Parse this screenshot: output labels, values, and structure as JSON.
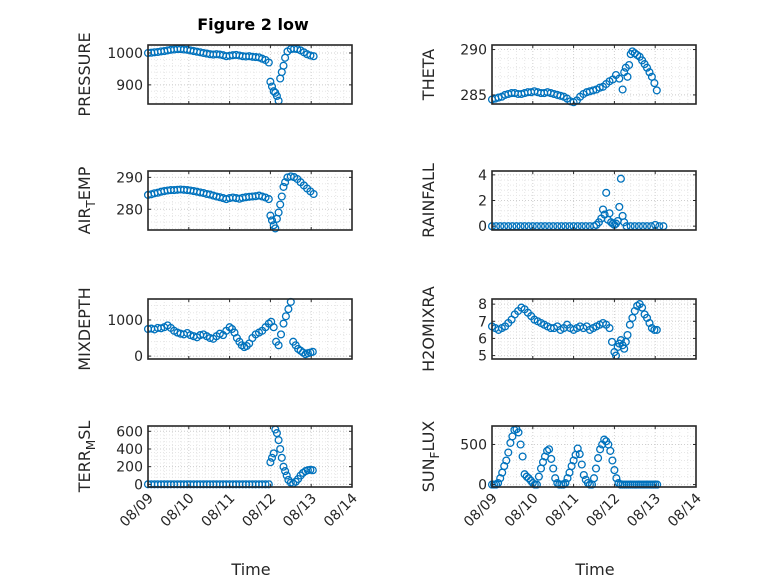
{
  "figure": {
    "title": "Figure 2 low",
    "xlabel": "Time",
    "marker_color": "#0072BD",
    "grid": true,
    "grid_style": "dotted",
    "x_ticks": [
      "08/09",
      "08/10",
      "08/11",
      "08/12",
      "08/13",
      "08/14"
    ]
  },
  "chart_data": [
    {
      "id": "pressure",
      "type": "scatter",
      "ylabel": "PRESSURE",
      "xlim": [
        0,
        5
      ],
      "ylim": [
        840,
        1025
      ],
      "yticks": [
        900,
        1000
      ],
      "ytick_labels": [
        "900",
        "1000"
      ],
      "x": [
        0.0,
        0.08,
        0.16,
        0.24,
        0.32,
        0.4,
        0.48,
        0.56,
        0.64,
        0.72,
        0.8,
        0.88,
        0.96,
        1.04,
        1.12,
        1.2,
        1.28,
        1.36,
        1.44,
        1.52,
        1.6,
        1.68,
        1.76,
        1.84,
        1.92,
        2.0,
        2.08,
        2.16,
        2.24,
        2.32,
        2.4,
        2.48,
        2.56,
        2.64,
        2.72,
        2.8,
        2.88,
        2.96,
        3.0,
        3.04,
        3.08,
        3.12,
        3.16,
        3.2,
        3.24,
        3.28,
        3.32,
        3.36,
        3.42,
        3.5,
        3.58,
        3.66,
        3.74,
        3.82,
        3.9,
        3.98,
        4.06
      ],
      "y": [
        1000,
        1001,
        1002,
        1003,
        1005,
        1006,
        1008,
        1010,
        1011,
        1012,
        1012,
        1011,
        1010,
        1008,
        1006,
        1004,
        1002,
        1000,
        998,
        996,
        995,
        996,
        995,
        993,
        990,
        991,
        993,
        994,
        992,
        990,
        989,
        990,
        988,
        987,
        986,
        982,
        978,
        970,
        910,
        895,
        880,
        875,
        865,
        850,
        920,
        940,
        960,
        985,
        1005,
        1012,
        1013,
        1012,
        1008,
        1002,
        996,
        992,
        990
      ]
    },
    {
      "id": "theta",
      "type": "scatter",
      "ylabel": "THETA",
      "xlim": [
        0,
        5
      ],
      "ylim": [
        284,
        290.5
      ],
      "yticks": [
        285,
        290
      ],
      "ytick_labels": [
        "285",
        "290"
      ],
      "x": [
        0.0,
        0.08,
        0.16,
        0.24,
        0.32,
        0.4,
        0.48,
        0.56,
        0.64,
        0.72,
        0.8,
        0.88,
        0.96,
        1.04,
        1.12,
        1.2,
        1.28,
        1.36,
        1.44,
        1.52,
        1.6,
        1.68,
        1.76,
        1.84,
        1.92,
        2.0,
        2.08,
        2.16,
        2.24,
        2.32,
        2.4,
        2.48,
        2.56,
        2.64,
        2.72,
        2.8,
        2.88,
        2.96,
        3.04,
        3.12,
        3.2,
        3.24,
        3.28,
        3.32,
        3.36,
        3.4,
        3.44,
        3.5,
        3.56,
        3.62,
        3.68,
        3.74,
        3.8,
        3.86,
        3.92,
        3.98,
        4.04
      ],
      "y": [
        284.5,
        284.6,
        284.7,
        284.8,
        285.0,
        285.1,
        285.2,
        285.2,
        285.1,
        285.1,
        285.2,
        285.3,
        285.3,
        285.4,
        285.3,
        285.2,
        285.2,
        285.3,
        285.2,
        285.1,
        285.0,
        284.9,
        284.8,
        284.6,
        284.3,
        284.2,
        284.4,
        284.8,
        285.1,
        285.3,
        285.4,
        285.5,
        285.6,
        285.8,
        285.9,
        286.2,
        286.5,
        286.7,
        287.2,
        286.8,
        285.6,
        287.5,
        288.0,
        287.0,
        288.3,
        289.5,
        289.8,
        289.6,
        289.4,
        289.2,
        288.8,
        288.4,
        288.0,
        287.5,
        287.0,
        286.3,
        285.5
      ]
    },
    {
      "id": "air_temp",
      "type": "scatter",
      "ylabel": "AIR_TEMP",
      "xlim": [
        0,
        5
      ],
      "ylim": [
        273.5,
        292
      ],
      "yticks": [
        280,
        290
      ],
      "ytick_labels": [
        "280",
        "290"
      ],
      "x": [
        0.0,
        0.08,
        0.16,
        0.24,
        0.32,
        0.4,
        0.48,
        0.56,
        0.64,
        0.72,
        0.8,
        0.88,
        0.96,
        1.04,
        1.12,
        1.2,
        1.28,
        1.36,
        1.44,
        1.52,
        1.6,
        1.68,
        1.76,
        1.84,
        1.92,
        2.0,
        2.08,
        2.16,
        2.24,
        2.32,
        2.4,
        2.48,
        2.56,
        2.64,
        2.72,
        2.8,
        2.88,
        2.96,
        3.0,
        3.04,
        3.08,
        3.12,
        3.16,
        3.2,
        3.24,
        3.28,
        3.32,
        3.36,
        3.42,
        3.5,
        3.58,
        3.66,
        3.74,
        3.82,
        3.9,
        3.98,
        4.06
      ],
      "y": [
        284.5,
        284.7,
        285.0,
        285.2,
        285.5,
        285.7,
        285.9,
        286.0,
        286.0,
        286.1,
        286.2,
        286.1,
        286.0,
        285.9,
        285.7,
        285.5,
        285.3,
        285.1,
        284.8,
        284.6,
        284.3,
        284.0,
        283.8,
        283.5,
        283.2,
        283.5,
        283.7,
        283.5,
        283.3,
        283.6,
        283.8,
        283.9,
        284.0,
        284.1,
        284.3,
        284.0,
        283.7,
        283.2,
        278.0,
        276.5,
        275.0,
        274.0,
        277.0,
        279.0,
        281.5,
        284.0,
        287.0,
        288.5,
        290.0,
        290.3,
        290.1,
        289.5,
        288.5,
        287.5,
        286.5,
        285.6,
        284.8
      ]
    },
    {
      "id": "rainfall",
      "type": "scatter",
      "ylabel": "RAINFALL",
      "xlim": [
        0,
        5
      ],
      "ylim": [
        -0.3,
        4.3
      ],
      "yticks": [
        0,
        2,
        4
      ],
      "ytick_labels": [
        "0",
        "2",
        "4"
      ],
      "x": [
        0.0,
        0.1,
        0.2,
        0.3,
        0.4,
        0.5,
        0.6,
        0.7,
        0.8,
        0.9,
        1.0,
        1.1,
        1.2,
        1.3,
        1.4,
        1.5,
        1.6,
        1.7,
        1.8,
        1.9,
        2.0,
        2.1,
        2.2,
        2.3,
        2.4,
        2.5,
        2.56,
        2.62,
        2.68,
        2.72,
        2.76,
        2.8,
        2.84,
        2.88,
        2.92,
        2.96,
        3.0,
        3.04,
        3.08,
        3.12,
        3.16,
        3.2,
        3.24,
        3.3,
        3.4,
        3.5,
        3.6,
        3.7,
        3.8,
        3.9,
        4.0,
        4.1,
        4.2
      ],
      "y": [
        0,
        0,
        0,
        0,
        0,
        0,
        0,
        0,
        0,
        0,
        0,
        0,
        0,
        0,
        0,
        0,
        0,
        0,
        0,
        0,
        0,
        0,
        0,
        0,
        0,
        0,
        0.1,
        0.3,
        0.6,
        1.3,
        0.9,
        2.6,
        0.5,
        1.0,
        0.3,
        0.2,
        0.1,
        0.2,
        0.4,
        1.5,
        3.7,
        0.8,
        0.3,
        0,
        0,
        0,
        0,
        0,
        0,
        0,
        0.1,
        0,
        0
      ]
    },
    {
      "id": "mixdepth",
      "type": "scatter",
      "ylabel": "MIXDEPTH",
      "xlim": [
        0,
        5
      ],
      "ylim": [
        -80,
        1580
      ],
      "yticks": [
        0,
        1000
      ],
      "ytick_labels": [
        "0",
        "1000"
      ],
      "x": [
        0.0,
        0.08,
        0.16,
        0.24,
        0.32,
        0.4,
        0.48,
        0.56,
        0.64,
        0.72,
        0.8,
        0.88,
        0.96,
        1.04,
        1.12,
        1.2,
        1.28,
        1.36,
        1.44,
        1.52,
        1.6,
        1.68,
        1.76,
        1.84,
        1.92,
        2.0,
        2.06,
        2.12,
        2.18,
        2.24,
        2.3,
        2.36,
        2.42,
        2.48,
        2.56,
        2.64,
        2.72,
        2.8,
        2.88,
        2.96,
        3.02,
        3.08,
        3.14,
        3.2,
        3.26,
        3.32,
        3.38,
        3.44,
        3.5,
        3.56,
        3.62,
        3.68,
        3.74,
        3.8,
        3.86,
        3.92,
        3.98,
        4.04
      ],
      "y": [
        750,
        760,
        740,
        780,
        770,
        800,
        850,
        780,
        700,
        650,
        620,
        600,
        640,
        580,
        550,
        520,
        580,
        600,
        550,
        500,
        480,
        550,
        620,
        580,
        700,
        800,
        750,
        650,
        500,
        400,
        300,
        250,
        280,
        350,
        500,
        600,
        650,
        700,
        800,
        900,
        950,
        800,
        400,
        300,
        600,
        900,
        1100,
        1300,
        1500,
        400,
        300,
        200,
        150,
        100,
        50,
        80,
        100,
        120
      ]
    },
    {
      "id": "h2omixra",
      "type": "scatter",
      "ylabel": "H2OMIXRA",
      "xlim": [
        0,
        5
      ],
      "ylim": [
        4.8,
        8.3
      ],
      "yticks": [
        5,
        6,
        7,
        8
      ],
      "ytick_labels": [
        "5",
        "6",
        "7",
        "8"
      ],
      "x": [
        0.0,
        0.08,
        0.16,
        0.24,
        0.32,
        0.4,
        0.48,
        0.56,
        0.64,
        0.72,
        0.8,
        0.88,
        0.96,
        1.04,
        1.12,
        1.2,
        1.28,
        1.36,
        1.44,
        1.52,
        1.6,
        1.68,
        1.76,
        1.84,
        1.92,
        2.0,
        2.08,
        2.16,
        2.24,
        2.32,
        2.4,
        2.48,
        2.56,
        2.64,
        2.72,
        2.8,
        2.88,
        2.94,
        3.0,
        3.04,
        3.08,
        3.12,
        3.16,
        3.2,
        3.24,
        3.28,
        3.32,
        3.38,
        3.44,
        3.5,
        3.56,
        3.62,
        3.68,
        3.74,
        3.8,
        3.86,
        3.92,
        3.98,
        4.04
      ],
      "y": [
        6.7,
        6.6,
        6.5,
        6.6,
        6.7,
        6.9,
        7.1,
        7.4,
        7.6,
        7.8,
        7.7,
        7.5,
        7.3,
        7.1,
        7.0,
        6.9,
        6.8,
        6.7,
        6.6,
        6.6,
        6.7,
        6.5,
        6.6,
        6.8,
        6.6,
        6.5,
        6.6,
        6.7,
        6.6,
        6.7,
        6.5,
        6.6,
        6.7,
        6.8,
        6.9,
        6.8,
        6.6,
        5.8,
        5.2,
        5.0,
        5.5,
        5.7,
        5.9,
        5.6,
        5.4,
        5.8,
        6.2,
        6.8,
        7.2,
        7.6,
        7.9,
        8.0,
        7.8,
        7.4,
        7.2,
        6.9,
        6.6,
        6.5,
        6.5
      ]
    },
    {
      "id": "terr_msl",
      "type": "scatter",
      "ylabel": "TERR_MSL",
      "xlim": [
        0,
        5
      ],
      "ylim": [
        -30,
        660
      ],
      "yticks": [
        0,
        200,
        400,
        600
      ],
      "ytick_labels": [
        "0",
        "200",
        "400",
        "600"
      ],
      "x": [
        0.0,
        0.08,
        0.16,
        0.24,
        0.32,
        0.4,
        0.48,
        0.56,
        0.64,
        0.72,
        0.8,
        0.88,
        0.96,
        1.04,
        1.12,
        1.2,
        1.28,
        1.36,
        1.44,
        1.52,
        1.6,
        1.68,
        1.76,
        1.84,
        1.92,
        2.0,
        2.08,
        2.16,
        2.24,
        2.32,
        2.4,
        2.48,
        2.56,
        2.64,
        2.72,
        2.8,
        2.88,
        2.96,
        3.0,
        3.04,
        3.08,
        3.12,
        3.16,
        3.2,
        3.24,
        3.28,
        3.32,
        3.36,
        3.4,
        3.44,
        3.5,
        3.56,
        3.62,
        3.68,
        3.74,
        3.8,
        3.86,
        3.92,
        3.98,
        4.04
      ],
      "y": [
        0,
        0,
        0,
        0,
        0,
        0,
        0,
        0,
        0,
        0,
        0,
        0,
        0,
        0,
        0,
        0,
        0,
        0,
        0,
        0,
        0,
        0,
        0,
        0,
        0,
        0,
        0,
        0,
        0,
        0,
        0,
        0,
        0,
        0,
        0,
        0,
        0,
        0,
        250,
        300,
        350,
        620,
        580,
        500,
        400,
        300,
        200,
        150,
        100,
        50,
        20,
        10,
        30,
        60,
        100,
        130,
        150,
        160,
        165,
        160
      ]
    },
    {
      "id": "sun_flux",
      "type": "scatter",
      "ylabel": "SUN_FLUX",
      "xlim": [
        0,
        5
      ],
      "ylim": [
        -30,
        730
      ],
      "yticks": [
        0,
        500
      ],
      "ytick_labels": [
        "0",
        "500"
      ],
      "x": [
        0.0,
        0.05,
        0.1,
        0.15,
        0.2,
        0.25,
        0.3,
        0.35,
        0.4,
        0.45,
        0.5,
        0.55,
        0.6,
        0.65,
        0.7,
        0.75,
        0.8,
        0.85,
        0.9,
        0.95,
        1.0,
        1.05,
        1.1,
        1.15,
        1.2,
        1.25,
        1.3,
        1.35,
        1.4,
        1.45,
        1.5,
        1.55,
        1.6,
        1.65,
        1.7,
        1.75,
        1.8,
        1.85,
        1.9,
        1.95,
        2.0,
        2.05,
        2.1,
        2.15,
        2.2,
        2.25,
        2.3,
        2.35,
        2.4,
        2.45,
        2.5,
        2.55,
        2.6,
        2.65,
        2.7,
        2.75,
        2.8,
        2.85,
        2.9,
        2.95,
        3.0,
        3.05,
        3.1,
        3.15,
        3.2,
        3.25,
        3.3,
        3.35,
        3.4,
        3.45,
        3.5,
        3.55,
        3.6,
        3.65,
        3.7,
        3.75,
        3.8,
        3.85,
        3.9,
        3.95,
        4.0,
        4.05
      ],
      "y": [
        0,
        0,
        0,
        20,
        80,
        150,
        230,
        300,
        400,
        520,
        600,
        680,
        690,
        650,
        500,
        350,
        130,
        100,
        80,
        50,
        20,
        0,
        0,
        100,
        200,
        280,
        350,
        420,
        440,
        320,
        200,
        80,
        20,
        0,
        0,
        0,
        20,
        80,
        150,
        230,
        300,
        370,
        450,
        380,
        250,
        120,
        60,
        20,
        0,
        0,
        80,
        200,
        330,
        440,
        500,
        560,
        540,
        500,
        420,
        300,
        180,
        80,
        20,
        0,
        0,
        0,
        0,
        0,
        0,
        0,
        0,
        0,
        0,
        0,
        0,
        0,
        0,
        0,
        0,
        0,
        0,
        0
      ]
    }
  ]
}
